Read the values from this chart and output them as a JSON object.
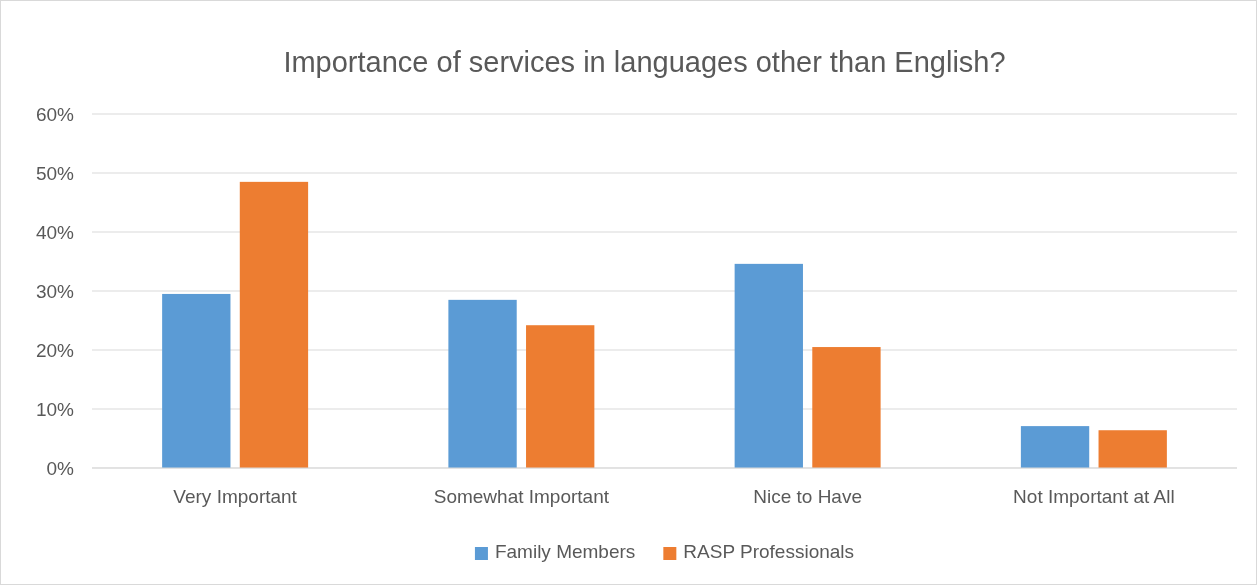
{
  "chart_data": {
    "type": "bar",
    "title": "Importance of services in languages other than English?",
    "categories": [
      "Very Important",
      "Somewhat Important",
      "Nice to Have",
      "Not Important at All"
    ],
    "series": [
      {
        "name": "Family Members",
        "color": "#5b9bd5",
        "values": [
          29.5,
          28.5,
          34.6,
          7.1
        ]
      },
      {
        "name": "RASP Professionals",
        "color": "#ed7d31",
        "values": [
          48.5,
          24.2,
          20.5,
          6.4
        ]
      }
    ],
    "ylim": [
      0,
      60
    ],
    "yticks": [
      {
        "value": 0,
        "label": "0%"
      },
      {
        "value": 10,
        "label": "10%"
      },
      {
        "value": 20,
        "label": "20%"
      },
      {
        "value": 30,
        "label": "30%"
      },
      {
        "value": 40,
        "label": "40%"
      },
      {
        "value": 50,
        "label": "50%"
      },
      {
        "value": 60,
        "label": "60%"
      }
    ],
    "grid": "y",
    "legend": "bottom"
  }
}
